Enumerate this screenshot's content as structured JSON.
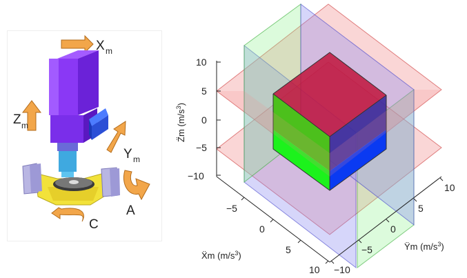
{
  "machine_diagram": {
    "arrows": [
      {
        "name": "X",
        "subscript": "m"
      },
      {
        "name": "Z",
        "subscript": "m"
      },
      {
        "name": "Y",
        "subscript": "m"
      },
      {
        "name": "A",
        "subscript": ""
      },
      {
        "name": "C",
        "subscript": ""
      }
    ],
    "colors": {
      "spindle_head": "#8a38f5",
      "spindle_face": "#6b22d8",
      "motor_block": "#2b4fd6",
      "tool_holder": "#3fa9e0",
      "table": "#f2e23a",
      "table_supports": "#b9b6e3",
      "arrow_fill": "#f2a64a",
      "arrow_edge": "#b36b1a"
    }
  },
  "plot": {
    "z_axis_label": "Z̈m (m/s",
    "z_axis_exp": "3",
    "z_axis_close": ")",
    "x_axis_label": "Ẍm (m/s",
    "x_axis_exp": "3",
    "x_axis_close": ")",
    "y_axis_label": "Ÿm (m/s",
    "y_axis_exp": "3",
    "y_axis_close": ")",
    "z_ticks": [
      "10",
      "5",
      "0",
      "−5",
      "−10"
    ],
    "x_ticks": [
      "−5",
      "0",
      "5",
      "10"
    ],
    "y_ticks": [
      "−10",
      "−5",
      "0",
      "5",
      "10"
    ],
    "colors": {
      "plane_z": "#f28a8a",
      "plane_x": "#8a8af2",
      "plane_y": "#8af28a",
      "cube_top": "#c0143c",
      "cube_front_upper": "#4cc01c",
      "cube_front_lower": "#1cf21c",
      "cube_side_upper": "#2a2ab0",
      "cube_side_lower": "#0a3af2"
    }
  }
}
